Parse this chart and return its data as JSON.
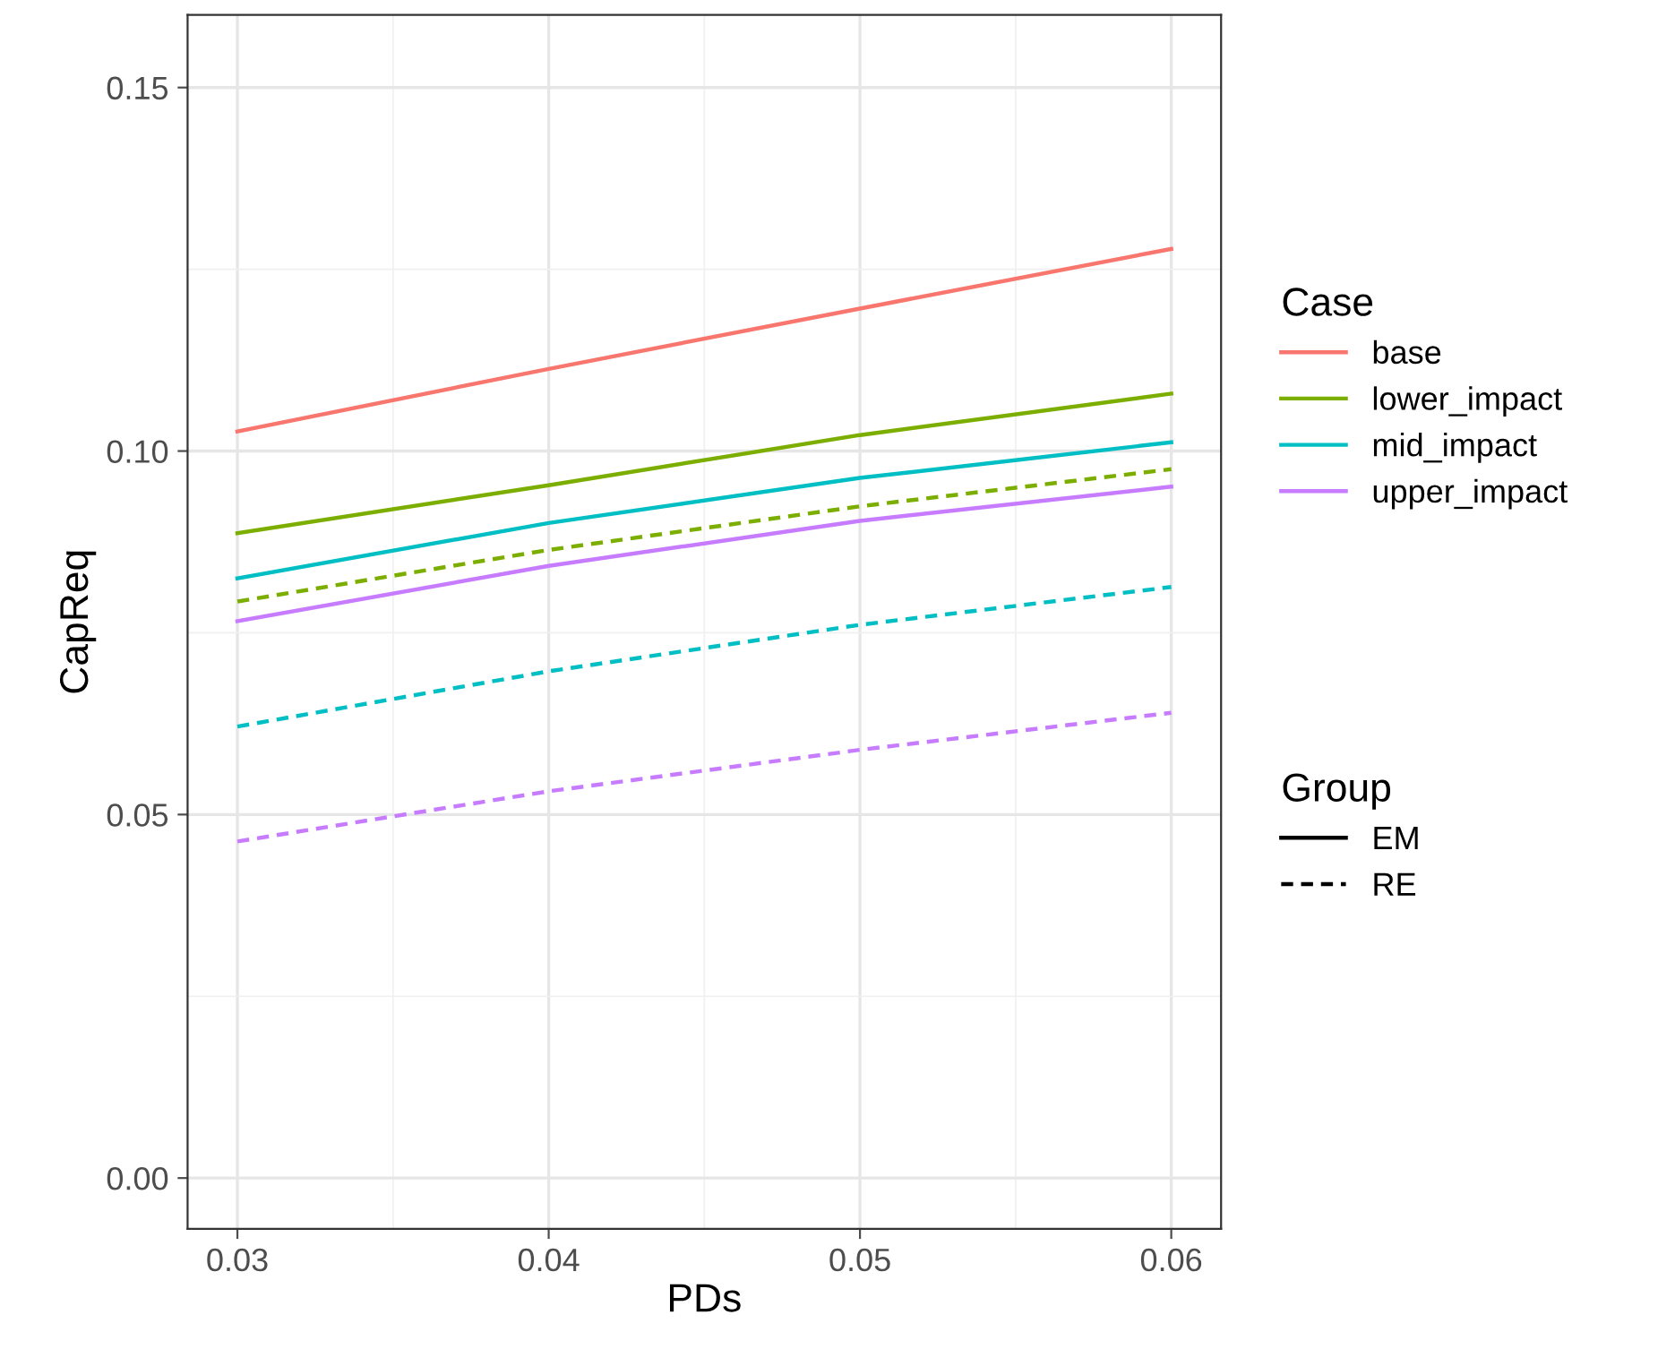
{
  "chart_data": {
    "type": "line",
    "xlabel": "PDs",
    "ylabel": "CapReq",
    "legend_title": [
      "Case",
      "Group"
    ],
    "legend": "right",
    "grid": true,
    "annotations": [
      "EM",
      "RE"
    ],
    "x": [
      0.03,
      0.04,
      0.05,
      0.06
    ],
    "xlim": [
      0.0284,
      0.0616
    ],
    "ylim": [
      -0.007,
      0.16
    ],
    "xticks": [
      {
        "value": 0.03,
        "label": "0.03"
      },
      {
        "value": 0.04,
        "label": "0.04"
      },
      {
        "value": 0.05,
        "label": "0.05"
      },
      {
        "value": 0.06,
        "label": "0.06"
      }
    ],
    "yticks": [
      {
        "value": 0.0,
        "label": "0.00"
      },
      {
        "value": 0.05,
        "label": "0.05"
      },
      {
        "value": 0.1,
        "label": "0.10"
      },
      {
        "value": 0.15,
        "label": "0.15"
      }
    ],
    "series": [
      {
        "name": "base",
        "line_style": "solid",
        "color": "#f8766d",
        "values": [
          0.1027,
          0.1113,
          0.1196,
          0.1278
        ]
      },
      {
        "name": "lower_impact",
        "line_style": "solid",
        "color": "#7cae00",
        "values": [
          0.0887,
          0.0953,
          0.1022,
          0.1079
        ]
      },
      {
        "name": "mid_impact",
        "line_style": "solid",
        "color": "#00bfc4",
        "values": [
          0.0825,
          0.0901,
          0.0963,
          0.1012
        ]
      },
      {
        "name": "upper_impact",
        "line_style": "solid",
        "color": "#c77cff",
        "values": [
          0.0766,
          0.0842,
          0.0904,
          0.0951
        ]
      },
      {
        "line_style": "dashed",
        "color": "#7cae00",
        "values": [
          0.0793,
          0.0864,
          0.0924,
          0.0975
        ]
      },
      {
        "line_style": "dashed",
        "color": "#00bfc4",
        "values": [
          0.0621,
          0.0697,
          0.0761,
          0.0813
        ]
      },
      {
        "line_style": "dashed",
        "color": "#c77cff",
        "values": [
          0.0463,
          0.0532,
          0.0589,
          0.064
        ]
      }
    ]
  }
}
